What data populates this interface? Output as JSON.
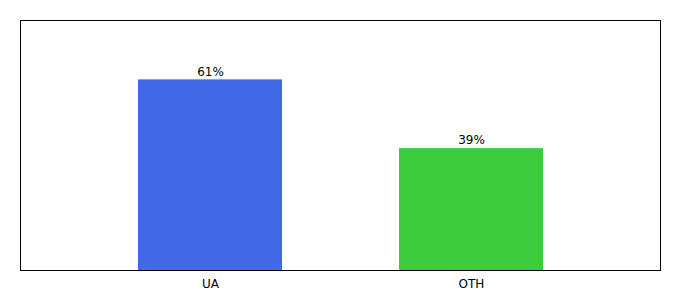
{
  "chart_data": {
    "type": "bar",
    "categories": [
      "UA",
      "OTH"
    ],
    "values": [
      61,
      39
    ],
    "value_labels": [
      "61%",
      "39%"
    ],
    "colors": [
      "#4169e8",
      "#3dcc3d"
    ],
    "ylim": [
      0,
      80
    ],
    "yticks": [],
    "data_labels": true,
    "tick_labels": "x"
  }
}
